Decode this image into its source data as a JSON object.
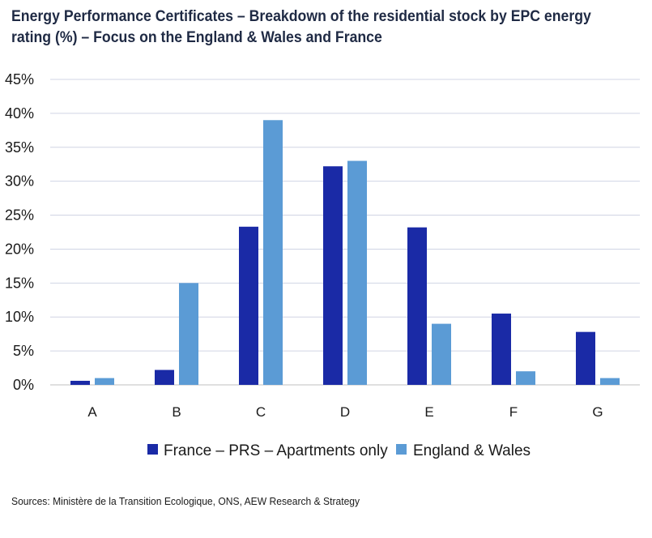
{
  "chart_data": {
    "type": "bar",
    "title": "Energy Performance Certificates – Breakdown of the residential stock by EPC energy rating (%) – Focus on the England & Wales and France",
    "categories": [
      "A",
      "B",
      "C",
      "D",
      "E",
      "F",
      "G"
    ],
    "series": [
      {
        "name": "France – PRS – Apartments only",
        "color": "#1a2aa6",
        "values": [
          0.6,
          2.2,
          23.3,
          32.2,
          23.2,
          10.5,
          7.8
        ]
      },
      {
        "name": "England & Wales",
        "color": "#5b9bd5",
        "values": [
          1.0,
          15.0,
          39.0,
          33.0,
          9.0,
          2.0,
          1.0
        ]
      }
    ],
    "ylim": [
      0,
      45
    ],
    "yticks": [
      0,
      5,
      10,
      15,
      20,
      25,
      30,
      35,
      40,
      45
    ],
    "ytick_suffix": "%",
    "grid": true,
    "legend_position": "bottom",
    "xlabel": "",
    "ylabel": ""
  },
  "source": "Sources: Ministère de la Transition Ecologique, ONS, AEW Research & Strategy"
}
